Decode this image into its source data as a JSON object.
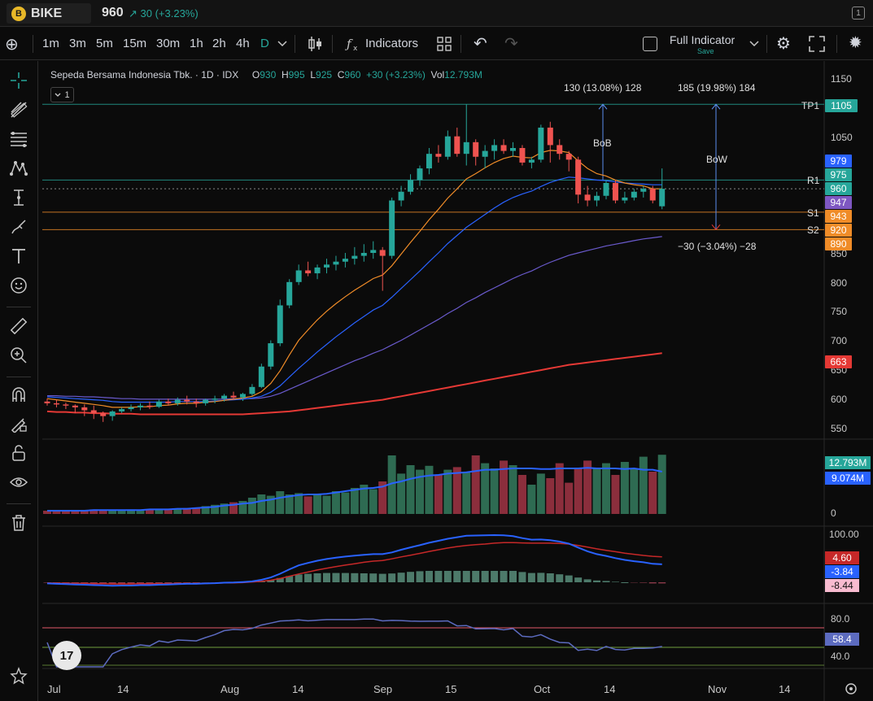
{
  "header": {
    "logo_glyph": "B",
    "symbol": "BIKE",
    "price": "960",
    "change": "↗ 30 (+3.23%)",
    "panel_count": "1"
  },
  "toolbar": {
    "intervals": [
      "1m",
      "3m",
      "5m",
      "15m",
      "30m",
      "1h",
      "2h",
      "4h",
      "D"
    ],
    "active_interval": "D",
    "indicators_label": "Indicators",
    "layout_name": "Full Indicator",
    "save_label": "Save"
  },
  "legend": {
    "name": "Sepeda Bersama Indonesia Tbk. · 1D · IDX",
    "o_label": "O",
    "o": "930",
    "h_label": "H",
    "h": "995",
    "l_label": "L",
    "l": "925",
    "c_label": "C",
    "c": "960",
    "change": "+30 (+3.23%)",
    "vol_label": "Vol",
    "vol": "12.793M",
    "collapse_count": "1"
  },
  "chart_data": {
    "type": "candlestick",
    "y_ticks": [
      "1150",
      "1050",
      "850",
      "800",
      "750",
      "700",
      "650",
      "600",
      "550"
    ],
    "x_ticks": [
      "Jul",
      "14",
      "Aug",
      "14",
      "Sep",
      "15",
      "Oct",
      "14",
      "Nov",
      "14"
    ],
    "candles": [
      [
        595,
        600,
        588,
        592
      ],
      [
        592,
        598,
        585,
        590
      ],
      [
        590,
        593,
        582,
        588
      ],
      [
        588,
        590,
        575,
        585
      ],
      [
        585,
        590,
        570,
        580
      ],
      [
        580,
        588,
        565,
        575
      ],
      [
        575,
        578,
        560,
        570
      ],
      [
        570,
        580,
        562,
        578
      ],
      [
        578,
        585,
        575,
        582
      ],
      [
        582,
        590,
        578,
        585
      ],
      [
        585,
        592,
        580,
        588
      ],
      [
        588,
        595,
        582,
        586
      ],
      [
        586,
        598,
        584,
        595
      ],
      [
        595,
        600,
        588,
        592
      ],
      [
        592,
        602,
        588,
        598
      ],
      [
        598,
        605,
        590,
        595
      ],
      [
        595,
        600,
        585,
        592
      ],
      [
        592,
        600,
        588,
        598
      ],
      [
        598,
        605,
        592,
        600
      ],
      [
        600,
        608,
        595,
        605
      ],
      [
        605,
        612,
        598,
        602
      ],
      [
        602,
        610,
        596,
        608
      ],
      [
        608,
        625,
        605,
        620
      ],
      [
        620,
        660,
        618,
        655
      ],
      [
        655,
        700,
        650,
        695
      ],
      [
        695,
        770,
        690,
        760
      ],
      [
        760,
        805,
        755,
        800
      ],
      [
        800,
        830,
        795,
        820
      ],
      [
        820,
        835,
        810,
        815
      ],
      [
        815,
        830,
        805,
        825
      ],
      [
        825,
        840,
        815,
        830
      ],
      [
        830,
        845,
        820,
        835
      ],
      [
        835,
        850,
        825,
        840
      ],
      [
        840,
        860,
        830,
        845
      ],
      [
        845,
        865,
        835,
        850
      ],
      [
        850,
        870,
        840,
        855
      ],
      [
        855,
        860,
        785,
        845
      ],
      [
        845,
        945,
        840,
        940
      ],
      [
        940,
        965,
        930,
        955
      ],
      [
        955,
        985,
        950,
        975
      ],
      [
        975,
        1000,
        965,
        995
      ],
      [
        995,
        1030,
        985,
        1020
      ],
      [
        1020,
        1035,
        1005,
        1015
      ],
      [
        1015,
        1060,
        1010,
        1050
      ],
      [
        1050,
        1065,
        1015,
        1020
      ],
      [
        1020,
        1105,
        1000,
        1040
      ],
      [
        1040,
        1045,
        1000,
        1015
      ],
      [
        1015,
        1035,
        995,
        1025
      ],
      [
        1025,
        1045,
        1010,
        1035
      ],
      [
        1035,
        1045,
        1020,
        1025
      ],
      [
        1025,
        1040,
        1015,
        1030
      ],
      [
        1030,
        1035,
        1000,
        1005
      ],
      [
        1005,
        1015,
        995,
        1010
      ],
      [
        1010,
        1070,
        1005,
        1065
      ],
      [
        1065,
        1075,
        1005,
        1035
      ],
      [
        1035,
        1045,
        1010,
        1020
      ],
      [
        1020,
        1025,
        990,
        1010
      ],
      [
        1010,
        1015,
        935,
        950
      ],
      [
        950,
        965,
        930,
        940
      ],
      [
        940,
        955,
        930,
        948
      ],
      [
        948,
        975,
        942,
        970
      ],
      [
        970,
        975,
        935,
        940
      ],
      [
        940,
        955,
        935,
        945
      ],
      [
        945,
        960,
        940,
        955
      ],
      [
        955,
        965,
        945,
        960
      ],
      [
        960,
        965,
        935,
        940
      ],
      [
        930,
        995,
        925,
        960
      ]
    ],
    "ema_fast": [
      600,
      598,
      596,
      594,
      592,
      590,
      588,
      585,
      585,
      585,
      586,
      586,
      588,
      589,
      591,
      592,
      592,
      594,
      595,
      597,
      599,
      601,
      604,
      612,
      626,
      648,
      675,
      700,
      718,
      735,
      750,
      763,
      775,
      786,
      796,
      806,
      812,
      828,
      848,
      868,
      887,
      907,
      925,
      944,
      960,
      977,
      986,
      996,
      1005,
      1012,
      1016,
      1014,
      1013,
      1022,
      1026,
      1025,
      1022,
      1008,
      995,
      986,
      982,
      975,
      970,
      967,
      965,
      960,
      960
    ],
    "ema_mid": [
      603,
      602,
      601,
      600,
      599,
      598,
      597,
      595,
      594,
      594,
      594,
      594,
      594,
      594,
      595,
      595,
      595,
      595,
      596,
      597,
      598,
      599,
      601,
      604,
      611,
      622,
      637,
      652,
      666,
      680,
      693,
      706,
      718,
      730,
      741,
      752,
      760,
      774,
      789,
      804,
      819,
      835,
      850,
      866,
      880,
      894,
      905,
      916,
      927,
      937,
      945,
      951,
      956,
      964,
      971,
      976,
      980,
      979,
      977,
      975,
      974,
      972,
      970,
      969,
      968,
      967,
      967
    ],
    "ema_slow": [
      605,
      605,
      604,
      604,
      603,
      603,
      602,
      601,
      600,
      600,
      599,
      599,
      599,
      599,
      599,
      599,
      599,
      599,
      599,
      599,
      600,
      600,
      600,
      601,
      604,
      609,
      616,
      623,
      630,
      637,
      644,
      651,
      658,
      665,
      671,
      678,
      684,
      692,
      700,
      709,
      718,
      727,
      736,
      746,
      755,
      765,
      773,
      782,
      790,
      798,
      806,
      813,
      819,
      827,
      834,
      840,
      846,
      850,
      854,
      858,
      862,
      865,
      868,
      871,
      874,
      876,
      878
    ],
    "ma_long": [
      578,
      577,
      577,
      576,
      576,
      575,
      575,
      574,
      574,
      574,
      573,
      573,
      573,
      573,
      573,
      573,
      573,
      573,
      573,
      573,
      573,
      573,
      574,
      575,
      576,
      577,
      578,
      580,
      582,
      584,
      586,
      588,
      590,
      592,
      594,
      596,
      598,
      601,
      604,
      607,
      610,
      613,
      616,
      619,
      622,
      625,
      628,
      631,
      634,
      637,
      640,
      643,
      646,
      649,
      652,
      655,
      658,
      660,
      662,
      664,
      666,
      668,
      670,
      672,
      674,
      676,
      678
    ],
    "levels": [
      {
        "name": "TP1",
        "value": 1105,
        "color": "#26a69a"
      },
      {
        "name": "R1",
        "value": 975,
        "color": "#26a69a"
      },
      {
        "name": "S1",
        "value": 920,
        "color": "#f08c28"
      },
      {
        "name": "S2",
        "value": 890,
        "color": "#f08c28"
      }
    ],
    "annotations": {
      "bob_range": "130 (13.08%) 128",
      "bob_label": "BoB",
      "bow_range": "185 (19.98%) 184",
      "bow_label": "BoW",
      "down_range": "−30 (−3.04%) −28"
    },
    "price_tags": [
      {
        "label": "TP1",
        "value": "1105",
        "color": "#26a69a"
      },
      {
        "value": "979",
        "color": "#2962ff"
      },
      {
        "value": "975",
        "color": "#26a69a"
      },
      {
        "value": "960",
        "color": "#26a69a"
      },
      {
        "value": "947",
        "color": "#7e57c2"
      },
      {
        "value": "943",
        "color": "#f08c28"
      },
      {
        "value": "920",
        "color": "#f08c28"
      },
      {
        "value": "890",
        "color": "#f08c28"
      },
      {
        "value": "663",
        "color": "#e53935"
      }
    ],
    "volume": {
      "ticks": [
        "0"
      ],
      "tags": [
        {
          "value": "12.793M",
          "color": "#26a69a"
        },
        {
          "value": "9.074M",
          "color": "#2962ff"
        }
      ],
      "bars": [
        0.05,
        0.06,
        0.05,
        0.06,
        0.05,
        0.07,
        0.06,
        0.05,
        0.06,
        0.07,
        0.06,
        0.07,
        0.08,
        0.07,
        0.08,
        0.09,
        0.1,
        0.12,
        0.14,
        0.16,
        0.18,
        0.2,
        0.25,
        0.3,
        0.28,
        0.35,
        0.3,
        0.32,
        0.27,
        0.3,
        0.28,
        0.35,
        0.33,
        0.4,
        0.45,
        0.38,
        0.5,
        0.9,
        0.62,
        0.75,
        0.68,
        0.74,
        0.6,
        0.68,
        0.72,
        0.65,
        0.9,
        0.78,
        0.7,
        0.82,
        0.75,
        0.6,
        0.45,
        0.62,
        0.55,
        0.78,
        0.48,
        0.7,
        0.82,
        0.7,
        0.78,
        0.6,
        0.8,
        0.7,
        0.88,
        0.65,
        0.91
      ],
      "ma": [
        0.05,
        0.05,
        0.05,
        0.05,
        0.05,
        0.06,
        0.06,
        0.06,
        0.06,
        0.06,
        0.06,
        0.07,
        0.07,
        0.07,
        0.08,
        0.08,
        0.09,
        0.1,
        0.11,
        0.13,
        0.14,
        0.16,
        0.17,
        0.2,
        0.22,
        0.25,
        0.27,
        0.29,
        0.3,
        0.3,
        0.31,
        0.33,
        0.35,
        0.37,
        0.39,
        0.4,
        0.42,
        0.47,
        0.5,
        0.54,
        0.57,
        0.59,
        0.6,
        0.62,
        0.63,
        0.64,
        0.66,
        0.68,
        0.68,
        0.69,
        0.7,
        0.7,
        0.7,
        0.69,
        0.69,
        0.7,
        0.7,
        0.7,
        0.71,
        0.7,
        0.7,
        0.7,
        0.69,
        0.7,
        0.68,
        0.68,
        0.65
      ]
    },
    "macd": {
      "ticks": [
        "100.00"
      ],
      "tags": [
        {
          "value": "4.60",
          "color": "#c62828"
        },
        {
          "value": "-3.84",
          "color": "#2962ff"
        },
        {
          "value": "-8.44",
          "color": "#f8bbd0"
        }
      ]
    },
    "rsi": {
      "ticks": [
        "80.0",
        "40.0"
      ],
      "tags": [
        {
          "value": "58.4",
          "color": "#5c6bc0"
        }
      ]
    }
  },
  "icons": {
    "add": "⊕",
    "undo": "↶",
    "redo": "↷",
    "gear": "⚙",
    "fullscreen": "⛶",
    "theme": "✹",
    "tv": "17"
  }
}
